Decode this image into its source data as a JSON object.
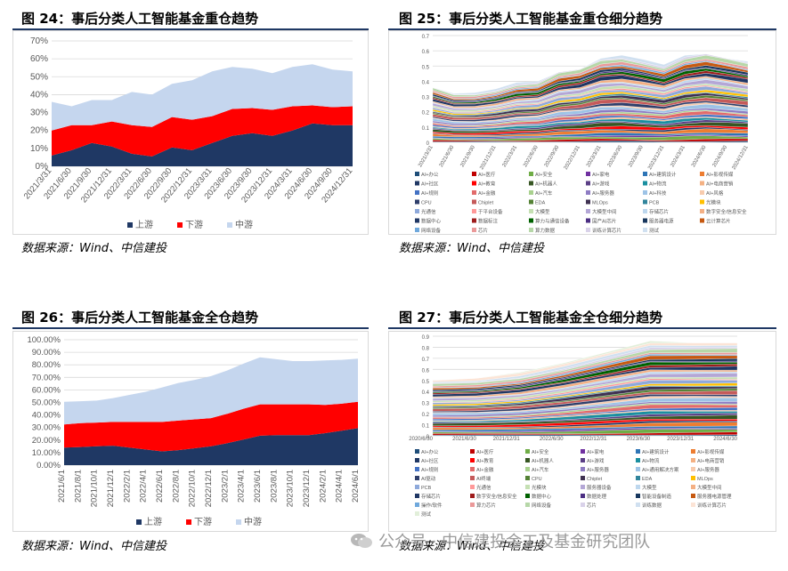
{
  "panels": [
    {
      "title": "图 24：事后分类人工智能基金重仓趋势",
      "source": "数据来源：Wind、中信建投"
    },
    {
      "title": "图 25：事后分类人工智能基金重仓细分趋势",
      "source": "数据来源：Wind、中信建投"
    },
    {
      "title": "图 26：事后分类人工智能基金全仓趋势",
      "source": "数据来源：Wind、中信建投"
    },
    {
      "title": "图 27：事后分类人工智能基金全仓细分趋势",
      "source": "数据来源：Wind、中信建投"
    }
  ],
  "watermark": "公众号 · 中信建投金工及基金研究团队",
  "colors": {
    "rule": "#1f3864",
    "upstream": "#1f3864",
    "downstream": "#ff0000",
    "midstream": "#c5d6ee"
  },
  "chart_data": [
    {
      "id": "fig24",
      "type": "area",
      "stacked": true,
      "title": "事后分类人工智能基金重仓趋势",
      "categories": [
        "2021/3/31",
        "2021/6/30",
        "2021/9/30",
        "2021/12/31",
        "2022/3/31",
        "2022/6/30",
        "2022/9/30",
        "2022/12/31",
        "2023/3/31",
        "2023/6/30",
        "2023/9/30",
        "2023/12/31",
        "2024/3/31",
        "2024/6/30",
        "2024/9/30",
        "2024/12/31"
      ],
      "ylim": [
        0,
        70
      ],
      "yticks": [
        "0%",
        "10%",
        "20%",
        "30%",
        "40%",
        "50%",
        "60%",
        "70%"
      ],
      "grid": true,
      "legend": "bottom",
      "series": [
        {
          "name": "上游",
          "color": "#1f3864",
          "values": [
            6,
            9,
            13,
            11,
            7,
            5.5,
            10.5,
            9,
            13,
            17,
            18.5,
            17,
            20,
            24,
            23,
            23
          ]
        },
        {
          "name": "下游",
          "color": "#ff0000",
          "values": [
            14,
            14,
            10,
            14,
            16,
            16.5,
            17,
            17,
            15,
            15,
            14,
            14.5,
            13.5,
            10,
            10,
            10.5
          ]
        },
        {
          "name": "中游",
          "color": "#c5d6ee",
          "values": [
            16,
            10.5,
            14,
            12,
            18.5,
            18,
            18.5,
            22,
            25,
            23.5,
            22,
            20.5,
            22,
            23,
            21,
            19.5
          ]
        }
      ]
    },
    {
      "id": "fig25",
      "type": "area",
      "stacked": true,
      "title": "事后分类人工智能基金重仓细分趋势",
      "categories": [
        "2021/3/31",
        "2021/6/30",
        "2021/9/30",
        "2021/12/31",
        "2022/3/31",
        "2022/6/30",
        "2022/9/30",
        "2022/12/31",
        "2023/3/31",
        "2023/6/30",
        "2023/9/30",
        "2023/12/31",
        "2024/3/31",
        "2024/6/30",
        "2024/9/30",
        "2024/12/31"
      ],
      "ylim": [
        0,
        0.7
      ],
      "yticks": [
        "0",
        "0.1",
        "0.2",
        "0.3",
        "0.4",
        "0.5",
        "0.6",
        "0.7"
      ],
      "grid": true,
      "legend": "bottom",
      "totals": [
        0.36,
        0.32,
        0.33,
        0.36,
        0.4,
        0.4,
        0.46,
        0.48,
        0.55,
        0.58,
        0.56,
        0.52,
        0.57,
        0.58,
        0.55,
        0.53
      ],
      "legend_items": [
        {
          "name": "AI+办公",
          "color": "#1f4e79"
        },
        {
          "name": "AI+医疗",
          "color": "#c00000"
        },
        {
          "name": "AI+安全",
          "color": "#70ad47"
        },
        {
          "name": "AI+家电",
          "color": "#7030a0"
        },
        {
          "name": "AI+建筑设计",
          "color": "#2e75b6"
        },
        {
          "name": "AI+影视传媒",
          "color": "#ed7d31"
        },
        {
          "name": "AI+社区",
          "color": "#203864"
        },
        {
          "name": "AI+教育",
          "color": "#ff0000"
        },
        {
          "name": "AI+机器人",
          "color": "#375623"
        },
        {
          "name": "AI+游戏",
          "color": "#5b3f86"
        },
        {
          "name": "AI+物流",
          "color": "#1a8fa0"
        },
        {
          "name": "AI+电商营销",
          "color": "#f4b183"
        },
        {
          "name": "AI+规则",
          "color": "#4472c4"
        },
        {
          "name": "AI+金融",
          "color": "#e26b6b"
        },
        {
          "name": "AI+汽车",
          "color": "#a9d18e"
        },
        {
          "name": "AI+服务器",
          "color": "#8e7cc3"
        },
        {
          "name": "AI+科技",
          "color": "#9dc3e6"
        },
        {
          "name": "AI+风格",
          "color": "#f8cbad"
        },
        {
          "name": "CPU",
          "color": "#2f3f6b"
        },
        {
          "name": "Chiplet",
          "color": "#c55a5a"
        },
        {
          "name": "EDA",
          "color": "#548235"
        },
        {
          "name": "MLOps",
          "color": "#3f3151"
        },
        {
          "name": "PCB",
          "color": "#31859c"
        },
        {
          "name": "光模块",
          "color": "#ffc000"
        },
        {
          "name": "光通信",
          "color": "#8ea9db"
        },
        {
          "name": "于平台设备",
          "color": "#ff9999"
        },
        {
          "name": "大模型",
          "color": "#c5e0b3"
        },
        {
          "name": "大模型中间",
          "color": "#b4a7d6"
        },
        {
          "name": "存储芯片",
          "color": "#bdd7ee"
        },
        {
          "name": "数字安全/信息安全",
          "color": "#f4b084"
        },
        {
          "name": "数据中心",
          "color": "#203764"
        },
        {
          "name": "数据标注",
          "color": "#9e1b1b"
        },
        {
          "name": "算力与通信设备",
          "color": "#006100"
        },
        {
          "name": "国产AI芯片",
          "color": "#4b2e83"
        },
        {
          "name": "服务器电源",
          "color": "#17375e"
        },
        {
          "name": "云计算芯片",
          "color": "#c65911"
        },
        {
          "name": "网络设备",
          "color": "#6fa8dc"
        },
        {
          "name": "芯片",
          "color": "#ea9999"
        },
        {
          "name": "算力数据",
          "color": "#b6d7a8"
        },
        {
          "name": "训练计算芯片",
          "color": "#d9d2e9"
        },
        {
          "name": "测试",
          "color": "#d0e0f0"
        }
      ]
    },
    {
      "id": "fig26",
      "type": "area",
      "stacked": true,
      "title": "事后分类人工智能基金全仓趋势",
      "categories": [
        "2021/6/1",
        "2021/8/1",
        "2021/10/1",
        "2021/12/1",
        "2022/2/1",
        "2022/4/1",
        "2022/6/1",
        "2022/8/1",
        "2022/10/1",
        "2022/12/1",
        "2023/2/1",
        "2023/4/1",
        "2023/6/1",
        "2023/8/1",
        "2023/10/1",
        "2023/12/1",
        "2024/2/1",
        "2024/4/1",
        "2024/6/1"
      ],
      "ylim": [
        0,
        100
      ],
      "yticks": [
        "0.00%",
        "10.00%",
        "20.00%",
        "30.00%",
        "40.00%",
        "50.00%",
        "60.00%",
        "70.00%",
        "80.00%",
        "90.00%",
        "100.00%"
      ],
      "grid": true,
      "legend": "bottom",
      "series": [
        {
          "name": "上游",
          "color": "#1f3864",
          "values": [
            14,
            14.5,
            15,
            15.5,
            14,
            12.5,
            11,
            12,
            13.5,
            15,
            17.5,
            20.5,
            23.5,
            24,
            24,
            24,
            25.5,
            27.5,
            29.5
          ]
        },
        {
          "name": "下游",
          "color": "#ff0000",
          "values": [
            18.5,
            19,
            19,
            19,
            20.5,
            22,
            23.5,
            23.5,
            23,
            22.5,
            23.5,
            24.5,
            25,
            24.5,
            24.5,
            24.5,
            22.5,
            21.5,
            21
          ]
        },
        {
          "name": "中游",
          "color": "#c5d6ee",
          "values": [
            18,
            17.5,
            17.5,
            19,
            21.5,
            24,
            27.5,
            30,
            31.5,
            33.5,
            34.5,
            36,
            37.5,
            36,
            34.5,
            34.5,
            35.5,
            35,
            34.5
          ]
        }
      ]
    },
    {
      "id": "fig27",
      "type": "area",
      "stacked": true,
      "title": "事后分类人工智能基金全仓细分趋势",
      "categories": [
        "2020/6/30",
        "2021/6/30",
        "2021/12/31",
        "2022/6/30",
        "2022/12/31",
        "2023/6/30",
        "2023/12/31",
        "2024/6/30"
      ],
      "ylim": [
        0,
        0.9
      ],
      "yticks": [
        "0",
        "0.1",
        "0.2",
        "0.3",
        "0.4",
        "0.5",
        "0.6",
        "0.7",
        "0.8",
        "0.9"
      ],
      "grid": true,
      "legend": "bottom",
      "totals": [
        0.5,
        0.52,
        0.58,
        0.68,
        0.78,
        0.86,
        0.84,
        0.84
      ],
      "legend_items": [
        {
          "name": "AI+办公",
          "color": "#1f4e79"
        },
        {
          "name": "AI+医疗",
          "color": "#c00000"
        },
        {
          "name": "AI+安全",
          "color": "#70ad47"
        },
        {
          "name": "AI+家电",
          "color": "#7030a0"
        },
        {
          "name": "AI+建筑设计",
          "color": "#2e75b6"
        },
        {
          "name": "AI+影视传媒",
          "color": "#ed7d31"
        },
        {
          "name": "AI+社区",
          "color": "#203864"
        },
        {
          "name": "AI+教育",
          "color": "#ff0000"
        },
        {
          "name": "AI+机器人",
          "color": "#375623"
        },
        {
          "name": "AI+游戏",
          "color": "#5b3f86"
        },
        {
          "name": "AI+物流",
          "color": "#1a8fa0"
        },
        {
          "name": "AI+电商营销",
          "color": "#f4b183"
        },
        {
          "name": "AI+规则",
          "color": "#4472c4"
        },
        {
          "name": "AI+金融",
          "color": "#e26b6b"
        },
        {
          "name": "AI+汽车",
          "color": "#a9d18e"
        },
        {
          "name": "AI+服务器",
          "color": "#8e7cc3"
        },
        {
          "name": "AI+通用解决方案",
          "color": "#9dc3e6"
        },
        {
          "name": "AI+服务器",
          "color": "#f8cbad"
        },
        {
          "name": "AI驱动",
          "color": "#2f3f6b"
        },
        {
          "name": "AI终端",
          "color": "#c55a5a"
        },
        {
          "name": "CPU",
          "color": "#548235"
        },
        {
          "name": "Chiplet",
          "color": "#3f3151"
        },
        {
          "name": "EDA",
          "color": "#31859c"
        },
        {
          "name": "MLOps",
          "color": "#ffc000"
        },
        {
          "name": "PCB",
          "color": "#8ea9db"
        },
        {
          "name": "光通信",
          "color": "#ff9999"
        },
        {
          "name": "光模块",
          "color": "#c5e0b3"
        },
        {
          "name": "服务器设备",
          "color": "#b4a7d6"
        },
        {
          "name": "大模型",
          "color": "#bdd7ee"
        },
        {
          "name": "大模型中间",
          "color": "#f4b084"
        },
        {
          "name": "存储芯片",
          "color": "#203764"
        },
        {
          "name": "数字安全/信息安全",
          "color": "#9e1b1b"
        },
        {
          "name": "数据中心",
          "color": "#006100"
        },
        {
          "name": "数据处理",
          "color": "#4b2e83"
        },
        {
          "name": "智能设备制造",
          "color": "#17375e"
        },
        {
          "name": "服务器电源管理",
          "color": "#c65911"
        },
        {
          "name": "操作/软件",
          "color": "#6fa8dc"
        },
        {
          "name": "算力芯片",
          "color": "#ea9999"
        },
        {
          "name": "网络设备",
          "color": "#b6d7a8"
        },
        {
          "name": "芯片",
          "color": "#d9d2e9"
        },
        {
          "name": "训练数据",
          "color": "#d0e0f0"
        },
        {
          "name": "训练计算芯片",
          "color": "#fce4d6"
        },
        {
          "name": "测试",
          "color": "#e2efda"
        }
      ]
    }
  ]
}
